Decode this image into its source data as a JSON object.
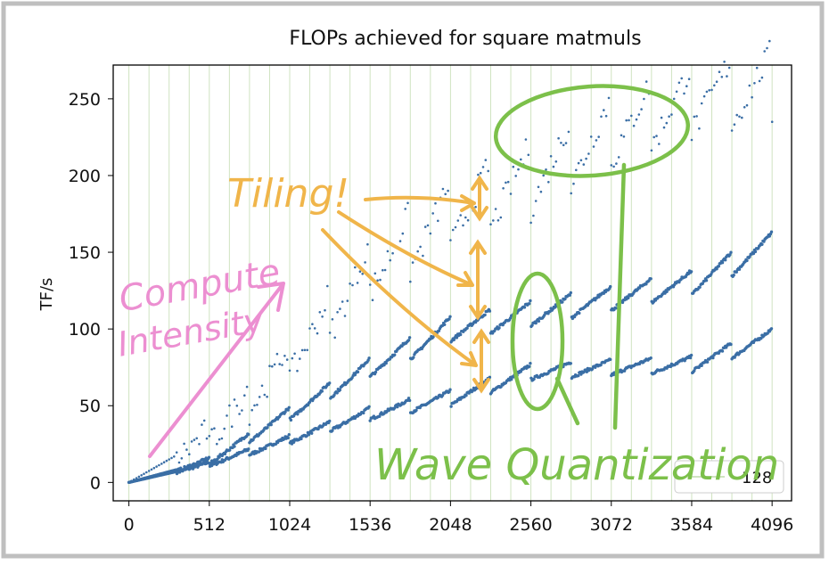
{
  "chart_data": {
    "type": "scatter",
    "title": "FLOPs achieved for square matmuls",
    "xlabel": "",
    "ylabel": "TF/s",
    "xlim": [
      -100,
      4220
    ],
    "ylim": [
      -12,
      272
    ],
    "x_ticks": [
      0,
      512,
      1024,
      1536,
      2048,
      2560,
      3072,
      3584,
      4096
    ],
    "y_ticks": [
      0,
      50,
      100,
      150,
      200,
      250
    ],
    "grid": "vertical lines every 128, light green",
    "legend": {
      "placement": "bottom-right",
      "entries": [
        "128"
      ]
    },
    "series": [
      {
        "description": "dense lower band",
        "color": "#3a6ea5",
        "points_x": [
          0,
          512,
          1024,
          1536,
          2048,
          2560,
          3072,
          3584,
          4096
        ],
        "points_y": [
          0,
          12,
          28,
          45,
          55,
          72,
          75,
          77,
          95
        ]
      },
      {
        "description": "dense middle band",
        "color": "#3a6ea5",
        "points_x": [
          0,
          512,
          1024,
          1536,
          2048,
          2560,
          3072,
          3584,
          4096
        ],
        "points_y": [
          0,
          14,
          45,
          75,
          100,
          110,
          120,
          130,
          155
        ]
      },
      {
        "description": "sparse upper band",
        "color": "#3a6ea5",
        "points_x": [
          0,
          512,
          1024,
          1536,
          2048,
          2560,
          3072,
          3584,
          4096
        ],
        "points_y": [
          0,
          30,
          80,
          140,
          175,
          200,
          230,
          250,
          260
        ]
      }
    ],
    "annotations": [
      {
        "text": "Compute Intensity",
        "color": "#ec8fd1"
      },
      {
        "text": "Tiling!",
        "color": "#f0b54a"
      },
      {
        "text": "Wave Quantization",
        "color": "#7cc04a"
      }
    ]
  },
  "colors": {
    "points": "#3a6ea5",
    "grid": "#cfe3c0",
    "compute": "#ec8fd1",
    "tiling": "#f0b54a",
    "wave": "#7cc04a"
  }
}
